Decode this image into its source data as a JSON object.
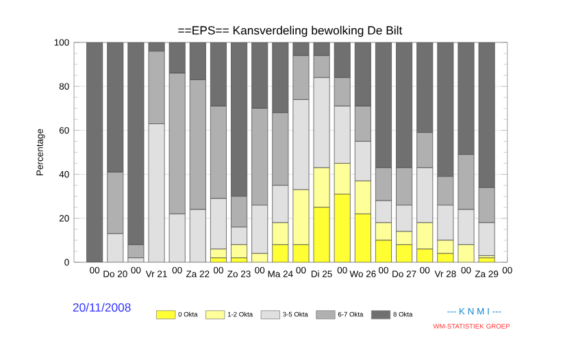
{
  "chart_data": {
    "type": "bar",
    "stacked": true,
    "title": "==EPS==   Kansverdeling bewolking De Bilt",
    "ylabel": "Percentage",
    "categories": [
      "00",
      "Do 20",
      "00",
      "Vr 21",
      "00",
      "Za 22",
      "00",
      "Zo 23",
      "00",
      "Ma 24",
      "00",
      "Di 25",
      "00",
      "Wo 26",
      "00",
      "Do 27",
      "00",
      "Vr 28",
      "00",
      "Za 29",
      "00"
    ],
    "ylim": [
      0,
      100
    ],
    "yticks": [
      0,
      20,
      40,
      60,
      80,
      100
    ],
    "grid": "y",
    "legend": "bottom",
    "series": [
      {
        "name": "0 Okta",
        "color": "#ffff33",
        "values": [
          0,
          0,
          0,
          0,
          0,
          0,
          2,
          2,
          0,
          8,
          8,
          25,
          31,
          22,
          10,
          8,
          6,
          4,
          0,
          2,
          null
        ]
      },
      {
        "name": "1-2 Okta",
        "color": "#ffff99",
        "values": [
          0,
          0,
          0,
          0,
          0,
          0,
          4,
          6,
          4,
          10,
          25,
          18,
          14,
          15,
          8,
          6,
          12,
          6,
          8,
          1,
          null
        ]
      },
      {
        "name": "3-5 Okta",
        "color": "#e0e0e0",
        "values": [
          0,
          13,
          2,
          63,
          22,
          24,
          23,
          8,
          22,
          17,
          41,
          41,
          26,
          18,
          10,
          12,
          25,
          16,
          16,
          15,
          null
        ]
      },
      {
        "name": "6-7 Okta",
        "color": "#b0b0b0",
        "values": [
          0,
          28,
          6,
          33,
          64,
          59,
          42,
          14,
          44,
          33,
          20,
          10,
          13,
          16,
          15,
          17,
          16,
          13,
          25,
          16,
          null
        ]
      },
      {
        "name": "8 Okta",
        "color": "#707070",
        "values": [
          100,
          59,
          92,
          4,
          14,
          17,
          29,
          70,
          30,
          32,
          6,
          6,
          16,
          29,
          57,
          57,
          41,
          61,
          51,
          66,
          null
        ]
      }
    ],
    "annotations": [
      "20/11/2008",
      "--- K N M I ---",
      "WM-STATISTIEK GROEP"
    ]
  }
}
